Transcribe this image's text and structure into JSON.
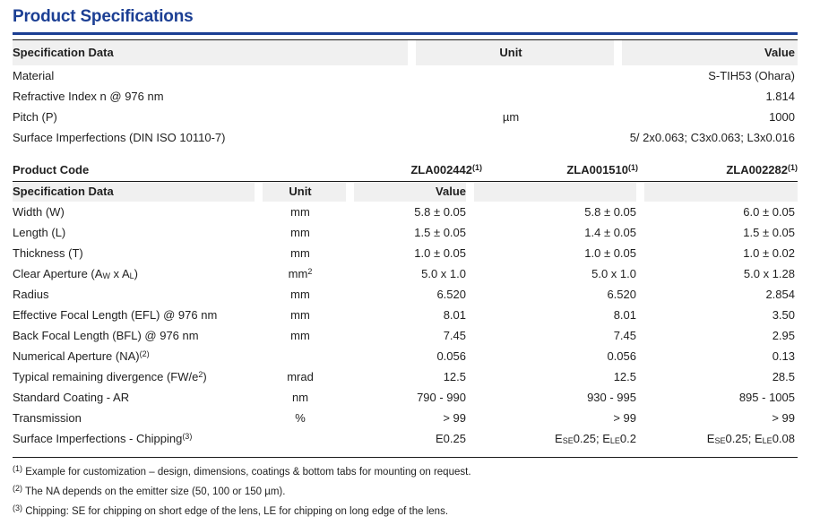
{
  "page": {
    "title": "Product Specifications"
  },
  "colors": {
    "accent": "#1c3f94",
    "header_bg": "#f0f0f0",
    "rule": "#1a1a1a",
    "text": "#1f1f1f"
  },
  "table1": {
    "headers": [
      "Specification Data",
      "Unit",
      "Value"
    ],
    "rows": [
      {
        "label": "Material",
        "unit": "",
        "value": "S-TIH53 (Ohara)"
      },
      {
        "label": "Refractive Index n @ 976 nm",
        "unit": "",
        "value": "1.814"
      },
      {
        "label": "Pitch (P)",
        "unit": "µm",
        "value": "1000"
      },
      {
        "label": "Surface Imperfections (DIN ISO 10110-7)",
        "unit": "",
        "value": "5/ 2x0.063; C3x0.063; L3x0.016"
      }
    ]
  },
  "table2": {
    "product_code_label": "Product Code",
    "product_codes": [
      "ZLA002442^{(1)}",
      "ZLA001510^{(1)}",
      "ZLA002282^{(1)}"
    ],
    "headers": [
      "Specification Data",
      "Unit",
      "Value"
    ],
    "rows": [
      {
        "label": "Width (W)",
        "unit": "mm",
        "values": [
          "5.8 ± 0.05",
          "5.8 ± 0.05",
          "6.0 ± 0.05"
        ]
      },
      {
        "label": "Length (L)",
        "unit": "mm",
        "values": [
          "1.5 ± 0.05",
          "1.4 ± 0.05",
          "1.5 ± 0.05"
        ]
      },
      {
        "label": "Thickness (T)",
        "unit": "mm",
        "values": [
          "1.0 ± 0.05",
          "1.0 ± 0.05",
          "1.0 ± 0.02"
        ]
      },
      {
        "label": "Clear Aperture (A_{W} x A_{L})",
        "unit": "mm^{2}",
        "values": [
          "5.0 x 1.0",
          "5.0 x 1.0",
          "5.0 x 1.28"
        ]
      },
      {
        "label": "Radius",
        "unit": "mm",
        "values": [
          "6.520",
          "6.520",
          "2.854"
        ]
      },
      {
        "label": "Effective Focal Length (EFL) @ 976 nm",
        "unit": "mm",
        "values": [
          "8.01",
          "8.01",
          "3.50"
        ]
      },
      {
        "label": "Back Focal Length (BFL) @ 976 nm",
        "unit": "mm",
        "values": [
          "7.45",
          "7.45",
          "2.95"
        ]
      },
      {
        "label": "Numerical Aperture (NA)^{(2)}",
        "unit": "",
        "values": [
          "0.056",
          "0.056",
          "0.13"
        ]
      },
      {
        "label": "Typical remaining divergence (FW/e^{2})",
        "unit": "mrad",
        "values": [
          "12.5",
          "12.5",
          "28.5"
        ]
      },
      {
        "label": "Standard Coating - AR",
        "unit": "nm",
        "values": [
          "790 - 990",
          "930 - 995",
          "895 - 1005"
        ]
      },
      {
        "label": "Transmission",
        "unit": "%",
        "values": [
          "> 99",
          "> 99",
          "> 99"
        ]
      },
      {
        "label": "Surface Imperfections  - Chipping^{(3)}",
        "unit": "",
        "values": [
          "E0.25",
          "E_{SE}0.25; E_{LE}0.2",
          "E_{SE}0.25; E_{LE}0.08"
        ]
      }
    ]
  },
  "footnotes": [
    "^{(1)} Example for customization – design, dimensions, coatings & bottom tabs for mounting on request.",
    "^{(2)} The NA depends on the emitter size (50, 100 or 150 µm).",
    "^{(3)} Chipping: SE for chipping on short edge of the lens, LE for chipping on long edge of the lens."
  ]
}
